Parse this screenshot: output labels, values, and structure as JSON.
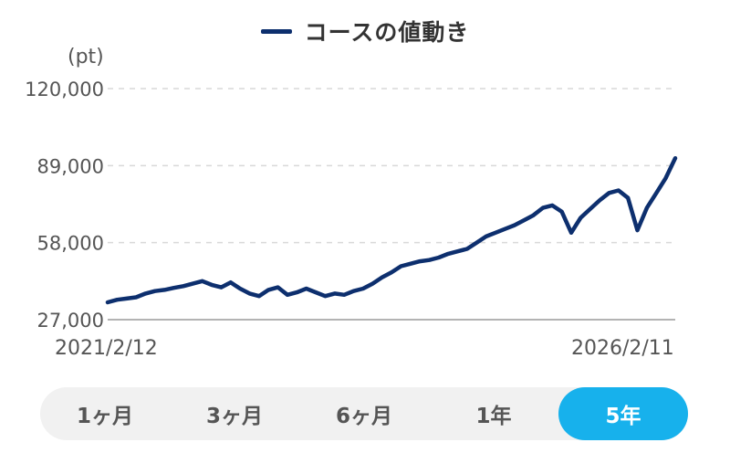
{
  "legend": {
    "label": "コースの値動き",
    "color": "#0d2f6e"
  },
  "chart_data": {
    "type": "line",
    "title": "",
    "xlabel": "",
    "ylabel": "(pt)",
    "ylim": [
      27000,
      120000
    ],
    "yticks": [
      27000,
      58000,
      89000,
      120000
    ],
    "ytick_labels": [
      "27,000",
      "58,000",
      "89,000",
      "120,000"
    ],
    "x_start_label": "2021/2/12",
    "x_end_label": "2026/2/11",
    "grid": true,
    "series": [
      {
        "name": "コースの値動き",
        "color": "#0d2f6e",
        "x": [
          "2021-02",
          "2021-03",
          "2021-04",
          "2021-05",
          "2021-06",
          "2021-07",
          "2021-08",
          "2021-09",
          "2021-10",
          "2021-11",
          "2021-12",
          "2022-01",
          "2022-02",
          "2022-03",
          "2022-04",
          "2022-05",
          "2022-06",
          "2022-07",
          "2022-08",
          "2022-09",
          "2022-10",
          "2022-11",
          "2022-12",
          "2023-01",
          "2023-02",
          "2023-03",
          "2023-04",
          "2023-05",
          "2023-06",
          "2023-07",
          "2023-08",
          "2023-09",
          "2023-10",
          "2023-11",
          "2023-12",
          "2024-01",
          "2024-02",
          "2024-03",
          "2024-04",
          "2024-05",
          "2024-06",
          "2024-07",
          "2024-08",
          "2024-09",
          "2024-10",
          "2024-11",
          "2024-12",
          "2025-01",
          "2025-02",
          "2025-03",
          "2025-04",
          "2025-05",
          "2025-06",
          "2025-07",
          "2025-08",
          "2025-09",
          "2025-10",
          "2025-11",
          "2025-12",
          "2026-01",
          "2026-02"
        ],
        "values": [
          34000,
          35000,
          35500,
          36000,
          37500,
          38500,
          39000,
          39800,
          40500,
          41500,
          42500,
          41000,
          40000,
          42000,
          39500,
          37500,
          36500,
          39000,
          40000,
          37000,
          38000,
          39500,
          38000,
          36500,
          37500,
          37000,
          38500,
          39500,
          41500,
          44000,
          46000,
          48500,
          49500,
          50500,
          51000,
          52000,
          53500,
          54500,
          55500,
          58000,
          60500,
          62000,
          63500,
          65000,
          67000,
          69000,
          72000,
          73000,
          70500,
          62000,
          68000,
          71500,
          75000,
          78000,
          79000,
          76000,
          63000,
          72000,
          78000,
          84000,
          92000
        ]
      }
    ]
  },
  "range_tabs": [
    {
      "label": "1ヶ月",
      "active": false
    },
    {
      "label": "3ヶ月",
      "active": false
    },
    {
      "label": "6ヶ月",
      "active": false
    },
    {
      "label": "1年",
      "active": false
    },
    {
      "label": "5年",
      "active": true
    }
  ]
}
